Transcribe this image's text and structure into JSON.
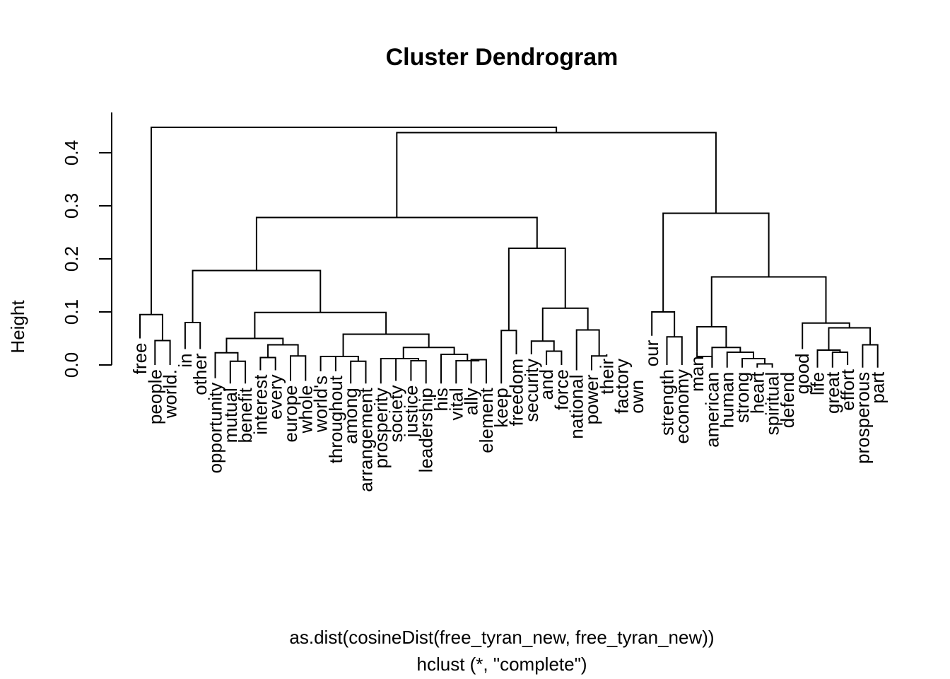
{
  "chart_data": {
    "type": "dendrogram",
    "title": "Cluster Dendrogram",
    "ylabel": "Height",
    "xlabel": "as.dist(cosineDist(free_tyran_new, free_tyran_new))",
    "subtitle": "hclust (*, \"complete\")",
    "ylim": [
      0,
      0.48
    ],
    "yticks": [
      0.0,
      0.1,
      0.2,
      0.3,
      0.4
    ],
    "ytick_labels": [
      "0.0",
      "0.1",
      "0.2",
      "0.3",
      "0.4"
    ],
    "leaves": [
      "free",
      "people",
      "world.",
      "in",
      "other",
      "opportunity",
      "mutual",
      "benefit",
      "interest",
      "every",
      "europe",
      "whole",
      "world's",
      "throughout",
      "among",
      "arrangement",
      "prosperity",
      "society",
      "justice",
      "leadership",
      "his",
      "vital",
      "ally",
      "element",
      "keep",
      "freedom",
      "security",
      "and",
      "force",
      "national",
      "power",
      "their",
      "factory",
      "own",
      "our",
      "strength",
      "economy",
      "man",
      "american",
      "human",
      "strong",
      "heart",
      "spiritual",
      "defend",
      "good",
      "life",
      "great",
      "effort",
      "prosperous",
      "part"
    ],
    "leaf_heights": [
      0.05,
      0.0,
      0.0,
      0.03,
      0.03,
      -0.025,
      -0.035,
      -0.035,
      -0.01,
      -0.01,
      -0.03,
      -0.03,
      -0.012,
      -0.012,
      -0.035,
      -0.035,
      -0.035,
      -0.03,
      -0.03,
      -0.035,
      -0.035,
      -0.035,
      -0.035,
      -0.035,
      -0.035,
      0.02,
      0.02,
      0.0,
      0.0,
      -0.01,
      -0.01,
      0.02,
      0.02,
      -0.02,
      0.055,
      0.0,
      0.0,
      0.025,
      -0.005,
      -0.005,
      -0.005,
      -0.005,
      -0.005,
      -0.005,
      0.03,
      -0.005,
      -0.005,
      0.0,
      -0.005,
      -0.005
    ],
    "merges": [
      {
        "a": "L1",
        "b": "L2",
        "h": 0.046
      },
      {
        "a": "L0",
        "b": "N0",
        "h": 0.095
      },
      {
        "a": "L3",
        "b": "L4",
        "h": 0.08
      },
      {
        "a": "L6",
        "b": "L7",
        "h": 0.007
      },
      {
        "a": "L5",
        "b": "N3",
        "h": 0.023
      },
      {
        "a": "L8",
        "b": "L9",
        "h": 0.014
      },
      {
        "a": "L10",
        "b": "L11",
        "h": 0.017
      },
      {
        "a": "N5",
        "b": "N6",
        "h": 0.038
      },
      {
        "a": "N4",
        "b": "N7",
        "h": 0.05
      },
      {
        "a": "L12",
        "b": "L13",
        "h": 0.016
      },
      {
        "a": "L14",
        "b": "L15",
        "h": 0.007
      },
      {
        "a": "N9",
        "b": "N10",
        "h": 0.016
      },
      {
        "a": "L16",
        "b": "L17",
        "h": 0.012
      },
      {
        "a": "L18",
        "b": "L19",
        "h": 0.008
      },
      {
        "a": "N12",
        "b": "N13",
        "h": 0.012
      },
      {
        "a": "L22",
        "b": "L23",
        "h": 0.01
      },
      {
        "a": "L21",
        "b": "N15",
        "h": 0.008
      },
      {
        "a": "L20",
        "b": "N16",
        "h": 0.02
      },
      {
        "a": "N14",
        "b": "N17",
        "h": 0.033
      },
      {
        "a": "N11",
        "b": "N18",
        "h": 0.058
      },
      {
        "a": "N8",
        "b": "N19",
        "h": 0.099
      },
      {
        "a": "N2",
        "b": "N20",
        "h": 0.178
      },
      {
        "a": "L24",
        "b": "L25",
        "h": 0.065
      },
      {
        "a": "L27",
        "b": "L28",
        "h": 0.026
      },
      {
        "a": "L26",
        "b": "N23",
        "h": 0.045
      },
      {
        "a": "L30",
        "b": "L31",
        "h": 0.017
      },
      {
        "a": "L29",
        "b": "N25",
        "h": 0.066
      },
      {
        "a": "N24",
        "b": "N26",
        "h": 0.107
      },
      {
        "a": "N22",
        "b": "N27",
        "h": 0.22
      },
      {
        "a": "N21",
        "b": "N28",
        "h": 0.278
      },
      {
        "a": "L35",
        "b": "L36",
        "h": 0.053
      },
      {
        "a": "L34",
        "b": "N30",
        "h": 0.1
      },
      {
        "a": "L41",
        "b": "L42",
        "h": 0.002
      },
      {
        "a": "L40",
        "b": "N32",
        "h": 0.012
      },
      {
        "a": "L39",
        "b": "N33",
        "h": 0.024
      },
      {
        "a": "L38",
        "b": "N34",
        "h": 0.033
      },
      {
        "a": "L37",
        "b": "L38x",
        "h": 0.016
      },
      {
        "a": "L36x",
        "b": "N35",
        "h": 0.072
      },
      {
        "a": "L46",
        "b": "L47",
        "h": 0.024
      },
      {
        "a": "L45",
        "b": "N38",
        "h": 0.028
      },
      {
        "a": "L48",
        "b": "L49",
        "h": 0.038
      },
      {
        "a": "N39",
        "b": "N40",
        "h": 0.07
      },
      {
        "a": "L44",
        "b": "N41",
        "h": 0.079
      },
      {
        "a": "N37",
        "b": "N42",
        "h": 0.166
      },
      {
        "a": "N31",
        "b": "N43",
        "h": 0.286
      },
      {
        "a": "N29",
        "b": "N44",
        "h": 0.438
      },
      {
        "a": "N1",
        "b": "N45",
        "h": 0.448
      }
    ]
  }
}
